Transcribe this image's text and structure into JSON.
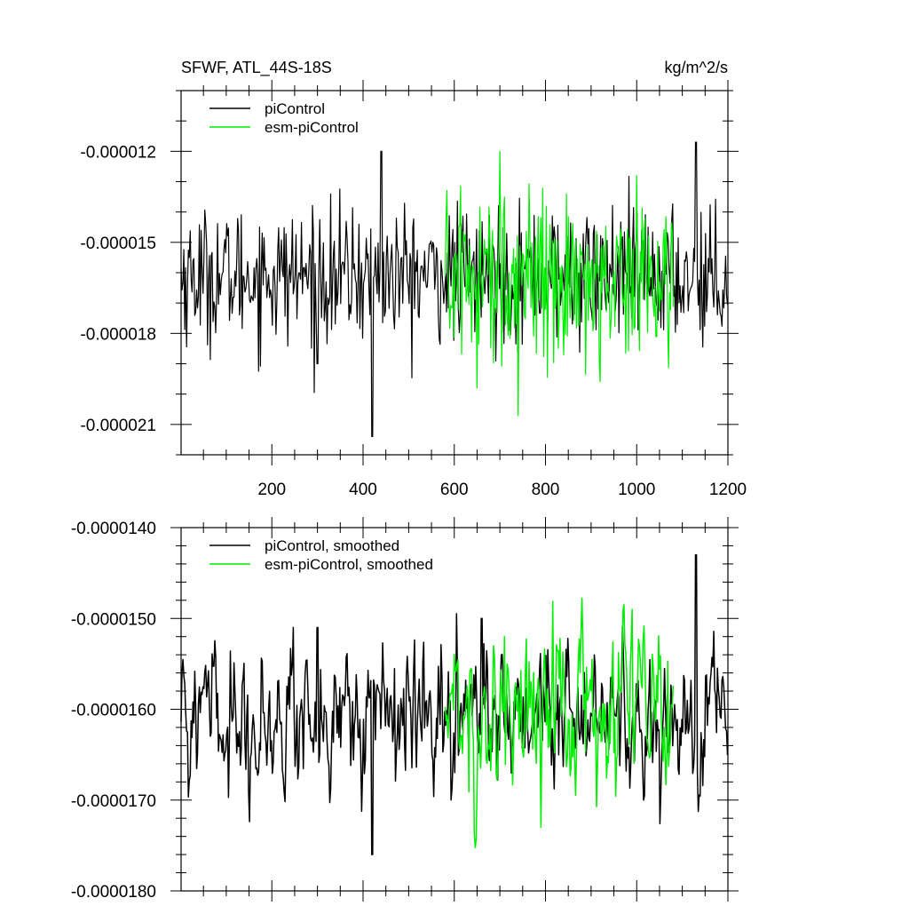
{
  "chart_data": [
    {
      "type": "line",
      "title": "SFWF, ATL_44S-18S",
      "units": "kg/m^2/s",
      "xlim": [
        1,
        1200
      ],
      "ylim": [
        -2.2e-05,
        -1e-05
      ],
      "x_ticks": [
        200,
        400,
        600,
        800,
        1000,
        1200
      ],
      "x_tick_labels": [
        "200",
        "400",
        "600",
        "800",
        "1000",
        "1200"
      ],
      "y_ticks": [
        -1.2e-05,
        -1.5e-05,
        -1.8e-05,
        -2.1e-05
      ],
      "y_tick_labels": [
        "-0.000012",
        "-0.000015",
        "-0.000018",
        "-0.000021"
      ],
      "legend_position": "top-left",
      "series": [
        {
          "name": "piControl",
          "color": "#000000",
          "x_range": [
            1,
            1200
          ],
          "mean": -1.61e-05,
          "spread": 1.1e-06,
          "extremes": [
            [
              420,
              -2.14e-05
            ],
            [
              440,
              -1.2e-05
            ],
            [
              1130,
              -1.17e-05
            ],
            [
              300,
              -1.9e-05
            ]
          ]
        },
        {
          "name": "esm-piControl",
          "color": "#00ee00",
          "x_range": [
            580,
            1080
          ],
          "mean": -1.61e-05,
          "spread": 1.4e-06,
          "extremes": [
            [
              650,
              -1.98e-05
            ],
            [
              700,
              -1.2e-05
            ],
            [
              920,
              -1.96e-05
            ],
            [
              1000,
              -1.28e-05
            ]
          ]
        }
      ]
    },
    {
      "type": "line",
      "xlim": [
        1,
        1200
      ],
      "ylim": [
        -1.8e-05,
        -1.4e-05
      ],
      "x_ticks": [
        200,
        400,
        600,
        800,
        1000,
        1200
      ],
      "y_ticks": [
        -1.4e-05,
        -1.5e-05,
        -1.6e-05,
        -1.7e-05,
        -1.8e-05
      ],
      "y_tick_labels": [
        "-0.0000140",
        "-0.0000150",
        "-0.0000160",
        "-0.0000170",
        "-0.0000180"
      ],
      "legend_position": "top-left",
      "series": [
        {
          "name": "piControl, smoothed",
          "color": "#000000",
          "x_range": [
            1,
            1200
          ],
          "mean": -1.61e-05,
          "spread": 4e-07,
          "extremes": [
            [
              420,
              -1.76e-05
            ],
            [
              1130,
              -1.43e-05
            ],
            [
              300,
              -1.51e-05
            ],
            [
              660,
              -1.5e-05
            ]
          ]
        },
        {
          "name": "esm-piControl, smoothed",
          "color": "#00ee00",
          "x_range": [
            580,
            1080
          ],
          "mean": -1.61e-05,
          "spread": 5e-07,
          "extremes": [
            [
              790,
              -1.73e-05
            ],
            [
              990,
              -1.49e-05
            ],
            [
              710,
              -1.52e-05
            ]
          ]
        }
      ]
    }
  ]
}
